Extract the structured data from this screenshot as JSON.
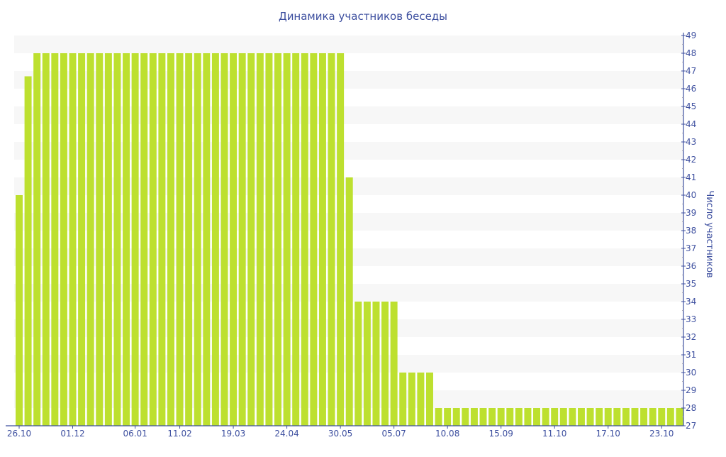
{
  "chart_data": {
    "type": "bar",
    "title": "Динамика участников беседы",
    "xlabel": "",
    "ylabel": "Число участников",
    "ylim": [
      27,
      49
    ],
    "y_ticks": [
      27,
      28,
      29,
      30,
      31,
      32,
      33,
      34,
      35,
      36,
      37,
      38,
      39,
      40,
      41,
      42,
      43,
      44,
      45,
      46,
      47,
      48,
      49
    ],
    "grid": "alternating horizontal bands",
    "y_axis_side": "right",
    "x_tick_labels": [
      {
        "bar": 0,
        "label": "26.10"
      },
      {
        "bar": 6,
        "label": "01.12"
      },
      {
        "bar": 13,
        "label": "06.01"
      },
      {
        "bar": 18,
        "label": "11.02"
      },
      {
        "bar": 24,
        "label": "19.03"
      },
      {
        "bar": 30,
        "label": "24.04"
      },
      {
        "bar": 36,
        "label": "30.05"
      },
      {
        "bar": 42,
        "label": "05.07"
      },
      {
        "bar": 48,
        "label": "10.08"
      },
      {
        "bar": 54,
        "label": "15.09"
      },
      {
        "bar": 60,
        "label": "11.10"
      },
      {
        "bar": 66,
        "label": "17.10"
      },
      {
        "bar": 72,
        "label": "23.10"
      }
    ],
    "values": [
      40,
      46.7,
      48,
      48,
      48,
      48,
      48,
      48,
      48,
      48,
      48,
      48,
      48,
      48,
      48,
      48,
      48,
      48,
      48,
      48,
      48,
      48,
      48,
      48,
      48,
      48,
      48,
      48,
      48,
      48,
      48,
      48,
      48,
      48,
      48,
      48,
      48,
      41,
      34,
      34,
      34,
      34,
      34,
      30,
      30,
      30,
      30,
      28,
      28,
      28,
      28,
      28,
      28,
      28,
      28,
      28,
      28,
      28,
      28,
      28,
      28,
      28,
      28,
      28,
      28,
      28,
      28,
      28,
      28,
      28,
      28,
      28,
      28,
      28,
      28
    ],
    "colors": {
      "bar": "#bde02f",
      "band": "#f7f7f7",
      "axis": "#3d4f9f"
    }
  }
}
